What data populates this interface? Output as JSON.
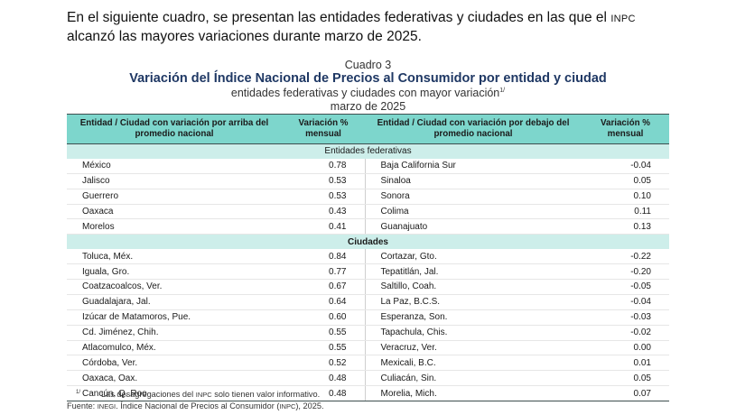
{
  "intro": {
    "line1": "En el siguiente cuadro, se presentan las entidades federativas y ciudades en las que el",
    "abbr": "INPC",
    "line2": "alcanzó las mayores variaciones durante marzo de 2025."
  },
  "table": {
    "number": "Cuadro 3",
    "title": "Variación del Índice Nacional de Precios al Consumidor por entidad y ciudad",
    "subtitle": "entidades federativas y ciudades con mayor variación",
    "subtitle_note": "1/",
    "period": "marzo de 2025",
    "headers": {
      "above_name": "Entidad / Ciudad con variación por arriba del promedio nacional",
      "above_value": "Variación % mensual",
      "below_name": "Entidad / Ciudad con variación por debajo del promedio nacional",
      "below_value": "Variación % mensual"
    },
    "section_states": "Entidades federativas",
    "section_cities": "Ciudades",
    "states": [
      {
        "up_name": "México",
        "up_val": "0.78",
        "down_name": "Baja California Sur",
        "down_val": "-0.04"
      },
      {
        "up_name": "Jalisco",
        "up_val": "0.53",
        "down_name": "Sinaloa",
        "down_val": "0.05"
      },
      {
        "up_name": "Guerrero",
        "up_val": "0.53",
        "down_name": "Sonora",
        "down_val": "0.10"
      },
      {
        "up_name": "Oaxaca",
        "up_val": "0.43",
        "down_name": "Colima",
        "down_val": "0.11"
      },
      {
        "up_name": "Morelos",
        "up_val": "0.41",
        "down_name": "Guanajuato",
        "down_val": "0.13"
      }
    ],
    "cities": [
      {
        "up_name": "Toluca, Méx.",
        "up_val": "0.84",
        "down_name": "Cortazar, Gto.",
        "down_val": "-0.22"
      },
      {
        "up_name": "Iguala, Gro.",
        "up_val": "0.77",
        "down_name": "Tepatitlán, Jal.",
        "down_val": "-0.20"
      },
      {
        "up_name": "Coatzacoalcos, Ver.",
        "up_val": "0.67",
        "down_name": "Saltillo, Coah.",
        "down_val": "-0.05"
      },
      {
        "up_name": "Guadalajara, Jal.",
        "up_val": "0.64",
        "down_name": "La Paz, B.C.S.",
        "down_val": "-0.04"
      },
      {
        "up_name": "Izúcar de Matamoros, Pue.",
        "up_val": "0.60",
        "down_name": "Esperanza, Son.",
        "down_val": "-0.03"
      },
      {
        "up_name": "Cd. Jiménez, Chih.",
        "up_val": "0.55",
        "down_name": "Tapachula, Chis.",
        "down_val": "-0.02"
      },
      {
        "up_name": "Atlacomulco, Méx.",
        "up_val": "0.55",
        "down_name": "Veracruz, Ver.",
        "down_val": "0.00"
      },
      {
        "up_name": "Córdoba, Ver.",
        "up_val": "0.52",
        "down_name": "Mexicali, B.C.",
        "down_val": "0.01"
      },
      {
        "up_name": "Oaxaca, Oax.",
        "up_val": "0.48",
        "down_name": "Culiacán, Sin.",
        "down_val": "0.05"
      },
      {
        "up_name": "Cancún, Q. Roo",
        "up_val": "0.48",
        "down_name": "Morelia, Mich.",
        "down_val": "0.07"
      }
    ]
  },
  "notes": {
    "mark": "1/",
    "note_pre": "Las desagregaciones del",
    "note_abbr": "INPC",
    "note_post": "solo tienen valor informativo.",
    "source_label": "Fuente:",
    "source_org": "INEGI",
    "source_text_1": ". Índice Nacional de Precios al Consumidor (",
    "source_abbr": "INPC",
    "source_text_2": "), 2025."
  }
}
